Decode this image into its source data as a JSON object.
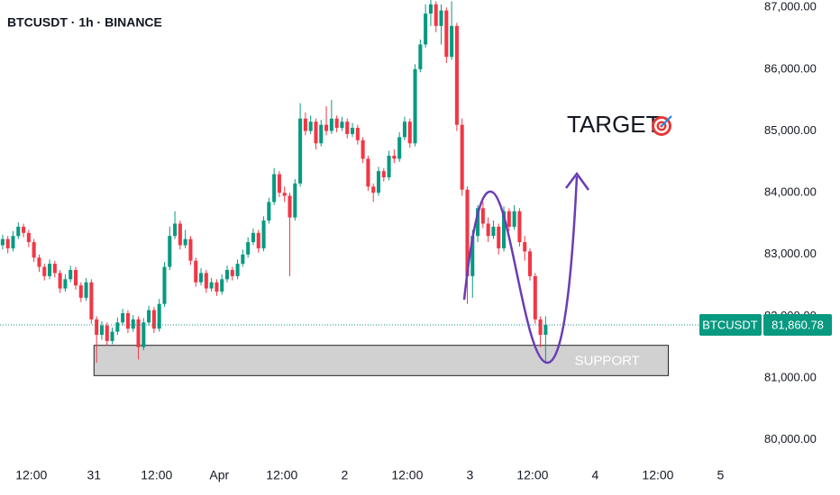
{
  "chart_data": {
    "type": "candlestick",
    "title": "BTCUSDT · 1h · BINANCE",
    "up_color": "#089981",
    "down_color": "#f23645",
    "open": [
      83150,
      83250,
      83100,
      83300,
      83450,
      83350,
      83200,
      82950,
      82800,
      82650,
      82850,
      82700,
      82450,
      82600,
      82750,
      82500,
      82300,
      82550,
      81950,
      81700,
      81850,
      81600,
      81750,
      81900,
      82050,
      81800,
      81950,
      81500,
      81900,
      82100,
      81800,
      82200,
      82800,
      83300,
      83500,
      83150,
      83250,
      82900,
      82550,
      82700,
      82450,
      82550,
      82400,
      82600,
      82750,
      82650,
      82850,
      83000,
      83200,
      83350,
      83100,
      83550,
      83850,
      84300,
      84000,
      83950,
      83600,
      84150,
      85200,
      85000,
      85150,
      84800,
      85100,
      85000,
      85200,
      85050,
      85150,
      84950,
      85050,
      84850,
      84550,
      84100,
      84000,
      84350,
      84250,
      84600,
      84550,
      84900,
      85150,
      84800,
      86000,
      86400,
      86900,
      87050,
      86700,
      86950,
      86200,
      86700,
      85100,
      84050,
      82650,
      83300,
      83750,
      83500,
      83300,
      83450,
      83100,
      83700,
      83450,
      83700,
      83200,
      83050,
      82650,
      81950,
      81700
    ],
    "high": [
      83320,
      83300,
      83380,
      83520,
      83500,
      83400,
      83250,
      83000,
      82850,
      82920,
      82900,
      82750,
      82680,
      82820,
      82800,
      82550,
      82620,
      82600,
      82000,
      81920,
      81900,
      81820,
      81980,
      82120,
      82100,
      82020,
      82000,
      81970,
      82170,
      82150,
      82280,
      82880,
      83450,
      83700,
      83550,
      83400,
      83300,
      82950,
      82780,
      82750,
      82620,
      82600,
      82680,
      82820,
      82800,
      82920,
      83080,
      83280,
      83420,
      83400,
      83620,
      83920,
      84400,
      84350,
      84100,
      84000,
      84220,
      85450,
      85300,
      85250,
      85200,
      85180,
      85400,
      85500,
      85250,
      85230,
      85200,
      85130,
      85100,
      84900,
      84600,
      84150,
      84420,
      84400,
      84680,
      84700,
      84980,
      85230,
      85200,
      86080,
      86480,
      87050,
      87120,
      87100,
      87050,
      87000,
      87100,
      86750,
      85200,
      84100,
      83400,
      83800,
      83850,
      83600,
      83550,
      83500,
      83780,
      83750,
      83800,
      83750,
      83300,
      83100,
      82700,
      82000,
      82000
    ],
    "low": [
      83080,
      83020,
      83050,
      83250,
      83280,
      83120,
      82880,
      82720,
      82580,
      82600,
      82630,
      82380,
      82400,
      82550,
      82430,
      82230,
      82250,
      81880,
      81250,
      81620,
      81520,
      81550,
      81700,
      81850,
      81730,
      81750,
      81300,
      81450,
      81850,
      81730,
      81750,
      82150,
      82750,
      83250,
      83080,
      83100,
      82830,
      82480,
      82500,
      82380,
      82400,
      82330,
      82350,
      82550,
      82580,
      82600,
      82800,
      82950,
      83150,
      83030,
      83050,
      83500,
      83800,
      83930,
      83850,
      82650,
      83550,
      84100,
      84930,
      84950,
      84700,
      84750,
      84930,
      84950,
      84980,
      85000,
      84880,
      84900,
      84780,
      84480,
      84030,
      83850,
      83950,
      84180,
      84200,
      84480,
      84500,
      84850,
      84730,
      84750,
      85950,
      86350,
      86700,
      86600,
      86400,
      86100,
      86150,
      85000,
      83950,
      82200,
      82300,
      83200,
      83430,
      83200,
      83250,
      83000,
      83050,
      83380,
      83400,
      83130,
      82900,
      82580,
      81880,
      81500,
      81250
    ],
    "close": [
      83250,
      83100,
      83300,
      83450,
      83350,
      83200,
      82950,
      82800,
      82650,
      82850,
      82700,
      82450,
      82600,
      82750,
      82500,
      82300,
      82550,
      81950,
      81700,
      81850,
      81600,
      81750,
      81900,
      82050,
      81800,
      81950,
      81500,
      81900,
      82100,
      81800,
      82200,
      82800,
      83300,
      83500,
      83150,
      83250,
      82900,
      82550,
      82700,
      82450,
      82550,
      82400,
      82600,
      82750,
      82650,
      82850,
      83000,
      83200,
      83350,
      83100,
      83550,
      83850,
      84300,
      84000,
      83950,
      83600,
      84150,
      85200,
      85000,
      85150,
      84800,
      85100,
      85000,
      85200,
      85050,
      85150,
      84950,
      85050,
      84850,
      84550,
      84100,
      84000,
      84350,
      84250,
      84600,
      84550,
      84900,
      85150,
      84800,
      86000,
      86400,
      86900,
      87050,
      86700,
      86950,
      86200,
      86700,
      85100,
      84050,
      82650,
      83300,
      83750,
      83500,
      83300,
      83450,
      83100,
      83700,
      83450,
      83700,
      83200,
      83050,
      82650,
      81950,
      81700,
      81860.78
    ],
    "xlim": [
      0,
      145
    ],
    "xticks": [
      {
        "value": 6,
        "label": "12:00"
      },
      {
        "value": 18,
        "label": "31"
      },
      {
        "value": 30,
        "label": "12:00"
      },
      {
        "value": 42,
        "label": "Apr"
      },
      {
        "value": 54,
        "label": "12:00"
      },
      {
        "value": 66,
        "label": "2"
      },
      {
        "value": 78,
        "label": "12:00"
      },
      {
        "value": 90,
        "label": "3"
      },
      {
        "value": 102,
        "label": "12:00"
      },
      {
        "value": 114,
        "label": "4"
      },
      {
        "value": 126,
        "label": "12:00"
      },
      {
        "value": 138,
        "label": "5"
      }
    ],
    "ylim": [
      79690,
      87120
    ],
    "yticks": [
      {
        "value": 80000,
        "label": "80,000.00"
      },
      {
        "value": 81000,
        "label": "81,000.00"
      },
      {
        "value": 82000,
        "label": "82,000.00"
      },
      {
        "value": 83000,
        "label": "83,000.00"
      },
      {
        "value": 84000,
        "label": "84,000.00"
      },
      {
        "value": 85000,
        "label": "85,000.00"
      },
      {
        "value": 86000,
        "label": "86,000.00"
      },
      {
        "value": 87000,
        "label": "87,000.00"
      }
    ],
    "last_price": {
      "symbol": "BTCUSDT",
      "value": 81860.78,
      "label": "81,860.78"
    },
    "support": {
      "label": "SUPPORT",
      "low": 81040,
      "high": 81530,
      "start": 18,
      "end": 128
    },
    "target_label": "TARGET"
  }
}
